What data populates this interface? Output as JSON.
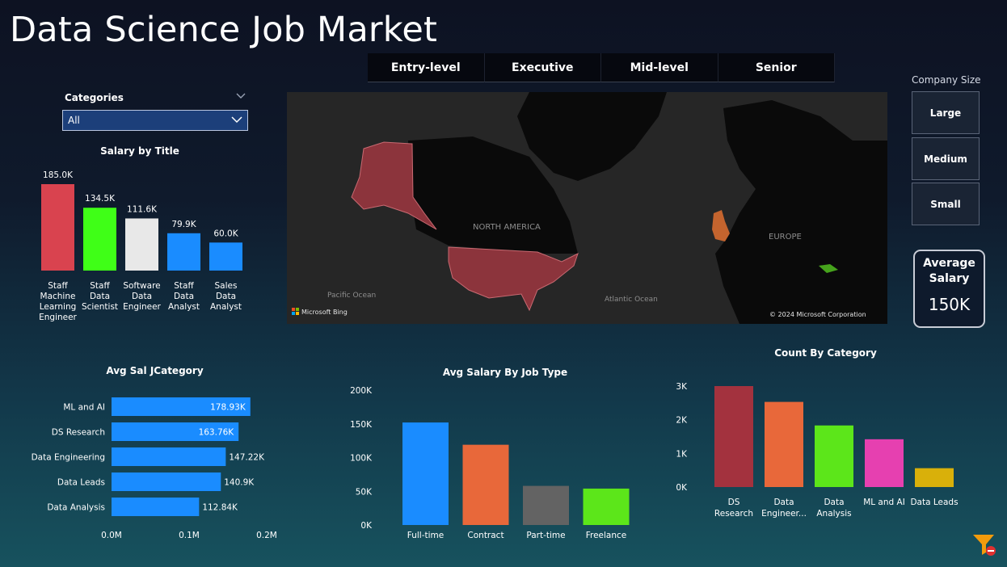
{
  "title": "Data Science Job Market",
  "level_tabs": [
    "Entry-level",
    "Executive",
    "Mid-level",
    "Senior"
  ],
  "categories_filter": {
    "label": "Categories",
    "value": "All"
  },
  "company_size": {
    "label": "Company Size",
    "options": [
      "Large",
      "Medium",
      "Small"
    ]
  },
  "avg_salary_card": {
    "title_line1": "Average",
    "title_line2": "Salary",
    "value": "150K"
  },
  "map": {
    "labels": {
      "north_america": "NORTH AMERICA",
      "europe": "EUROPE",
      "pacific": "Pacific Ocean",
      "atlantic": "Atlantic Ocean"
    },
    "bing": "Microsoft Bing",
    "copyright": "© 2024 Microsoft Corporation",
    "colors": {
      "usa": "#8c343c",
      "uk": "#c4642e",
      "georgia": "#46a31c"
    }
  },
  "chart_data": [
    {
      "type": "bar",
      "title": "Salary by Title",
      "categories": [
        [
          "Staff",
          "Machine",
          "Learning",
          "Engineer"
        ],
        [
          "Staff",
          "Data",
          "Scientist"
        ],
        [
          "Software",
          "Data",
          "Engineer"
        ],
        [
          "Staff",
          "Data",
          "Analyst"
        ],
        [
          "Sales",
          "Data",
          "Analyst"
        ]
      ],
      "values": [
        185.0,
        134.5,
        111.6,
        79.9,
        60.0
      ],
      "data_labels": [
        "185.0K",
        "134.5K",
        "111.6K",
        "79.9K",
        "60.0K"
      ],
      "colors": [
        "#d9434f",
        "#3fff17",
        "#e8e8e8",
        "#1a8cff",
        "#1a8cff"
      ],
      "unit": "K"
    },
    {
      "type": "bar",
      "orientation": "horizontal",
      "title": "Avg Sal JCategory",
      "categories": [
        "ML and AI",
        "DS Research",
        "Data Engineering",
        "Data Leads",
        "Data Analysis"
      ],
      "values": [
        0.17893,
        0.16376,
        0.14722,
        0.1409,
        0.11284
      ],
      "data_labels": [
        "178.93K",
        "163.76K",
        "147.22K",
        "140.9K",
        "112.84K"
      ],
      "x_ticks": [
        "0.0M",
        "0.1M",
        "0.2M"
      ],
      "xlim": [
        0,
        0.2
      ],
      "color": "#1a8cff"
    },
    {
      "type": "bar",
      "title": "Avg Salary By Job Type",
      "categories": [
        "Full-time",
        "Contract",
        "Part-time",
        "Freelance"
      ],
      "values": [
        152,
        119,
        58,
        54
      ],
      "colors": [
        "#1a8cff",
        "#e8683a",
        "#636363",
        "#5ce61a"
      ],
      "y_ticks": [
        "0K",
        "50K",
        "100K",
        "150K",
        "200K"
      ],
      "ylim": [
        0,
        200
      ]
    },
    {
      "type": "bar",
      "title": "Count By Category",
      "categories": [
        [
          "DS",
          "Research"
        ],
        [
          "Data",
          "Engineer..."
        ],
        [
          "Data",
          "Analysis"
        ],
        [
          "ML and AI"
        ],
        [
          "Data Leads"
        ]
      ],
      "values": [
        3000,
        2530,
        1830,
        1420,
        560
      ],
      "colors": [
        "#a3323e",
        "#e8683a",
        "#5ce61a",
        "#e640b0",
        "#d9b00a"
      ],
      "y_ticks": [
        "0K",
        "1K",
        "2K",
        "3K"
      ],
      "ylim": [
        0,
        3000
      ]
    }
  ]
}
